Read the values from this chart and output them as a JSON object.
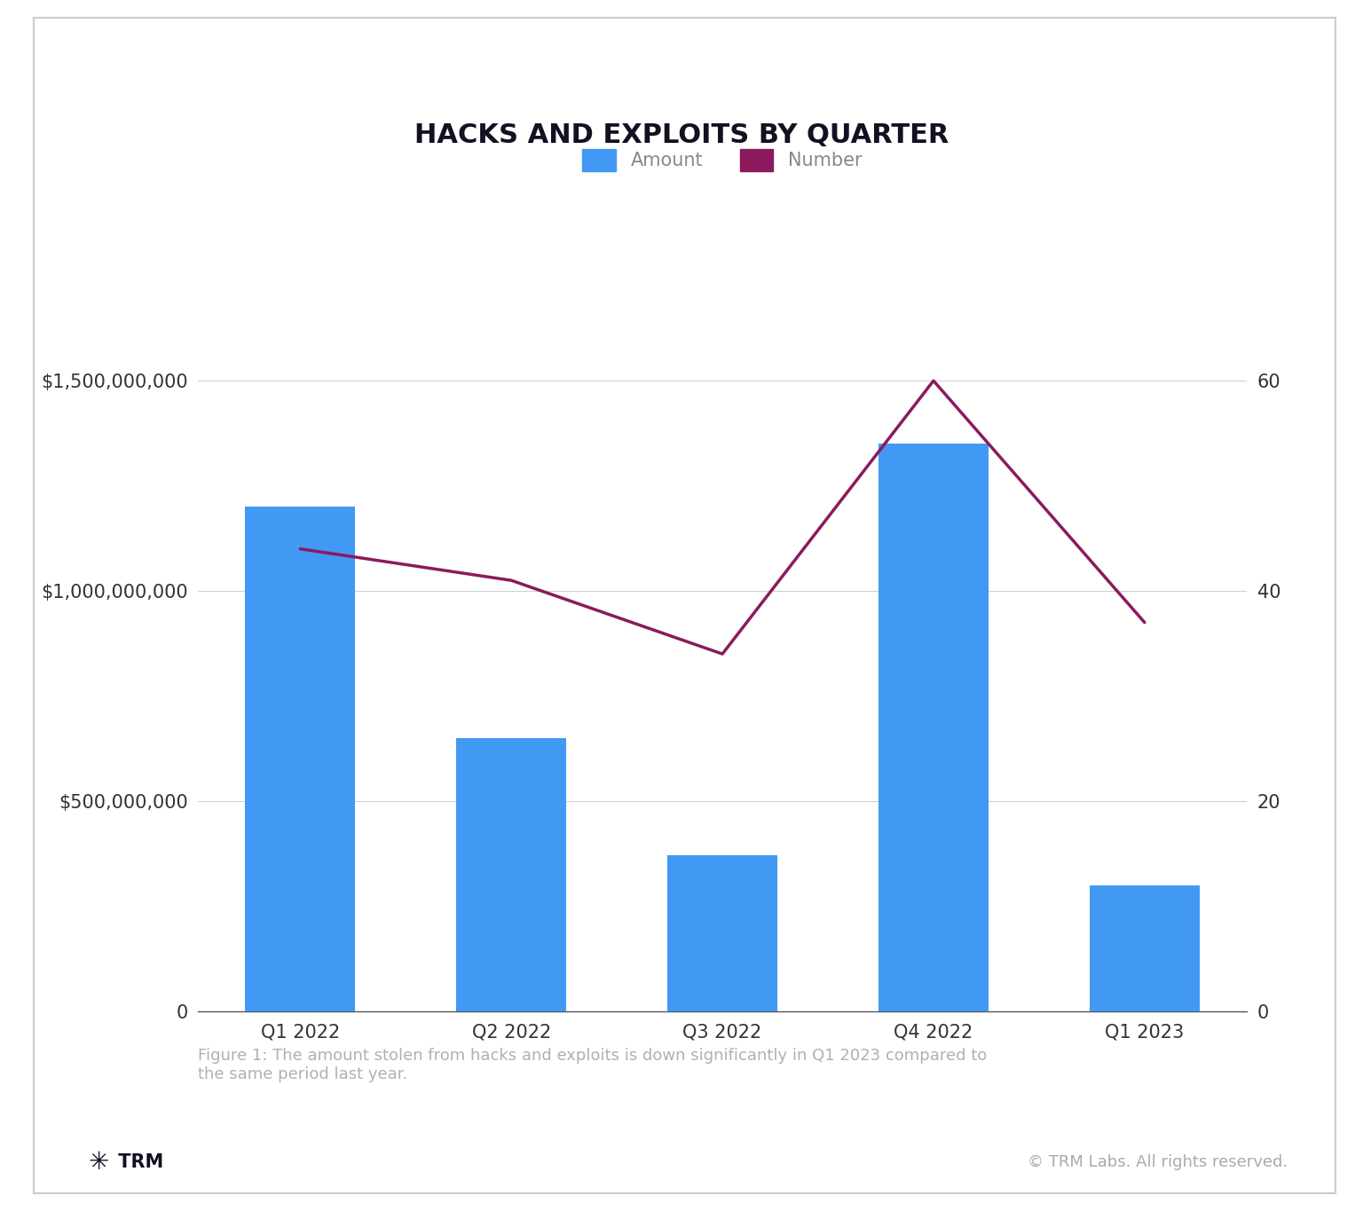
{
  "title": "HACKS AND EXPLOITS BY QUARTER",
  "categories": [
    "Q1 2022",
    "Q2 2022",
    "Q3 2022",
    "Q4 2022",
    "Q1 2023"
  ],
  "amounts": [
    1200000000,
    650000000,
    370000000,
    1350000000,
    300000000
  ],
  "number_of_hacks": [
    44,
    41,
    34,
    60,
    37
  ],
  "bar_color": "#4199f4",
  "line_color": "#8b1a5c",
  "background_color": "#ffffff",
  "ylim_left": [
    0,
    1700000000
  ],
  "ylim_right": [
    0,
    68
  ],
  "yticks_left": [
    0,
    500000000,
    1000000000,
    1500000000
  ],
  "yticks_right": [
    0,
    20,
    40,
    60
  ],
  "legend_amount_label": "Amount",
  "legend_number_label": "Number",
  "figure_caption": "Figure 1: The amount stolen from hacks and exploits is down significantly in Q1 2023 compared to\nthe same period last year.",
  "caption_color": "#b0b0b0",
  "footer_right": "© TRM Labs. All rights reserved.",
  "title_fontsize": 22,
  "tick_fontsize": 15,
  "legend_fontsize": 15,
  "caption_fontsize": 13,
  "footer_fontsize": 13
}
